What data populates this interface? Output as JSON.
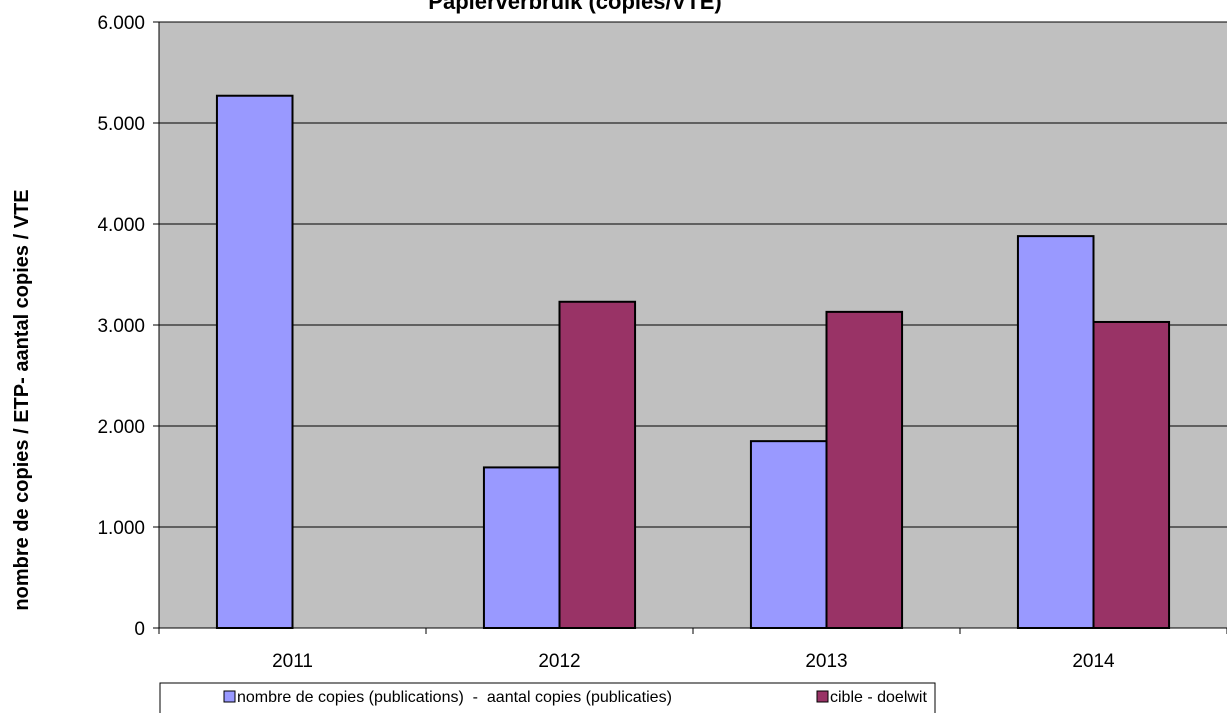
{
  "chart_data": {
    "type": "bar",
    "title": "Papierverbruik (copies/VTE)",
    "xlabel": "",
    "ylabel": "nombre de copies / ETP- aantal copies / VTE",
    "categories": [
      "2011",
      "2012",
      "2013",
      "2014"
    ],
    "series": [
      {
        "name": "nombre de copies (publications)  -  aantal copies (publicaties)",
        "color": "#9999ff",
        "values": [
          5270,
          1590,
          1850,
          3880
        ]
      },
      {
        "name": "cible - doelwit",
        "color": "#993366",
        "values": [
          null,
          3230,
          3130,
          3030
        ]
      }
    ],
    "ylim": [
      0,
      6000
    ],
    "yticks": [
      0,
      1000,
      2000,
      3000,
      4000,
      5000,
      6000
    ],
    "ytick_labels": [
      "0",
      "1.000",
      "2.000",
      "3.000",
      "4.000",
      "5.000",
      "6.000"
    ],
    "plot_background": "#c0c0c0",
    "grid": true,
    "legend_position": "bottom"
  }
}
